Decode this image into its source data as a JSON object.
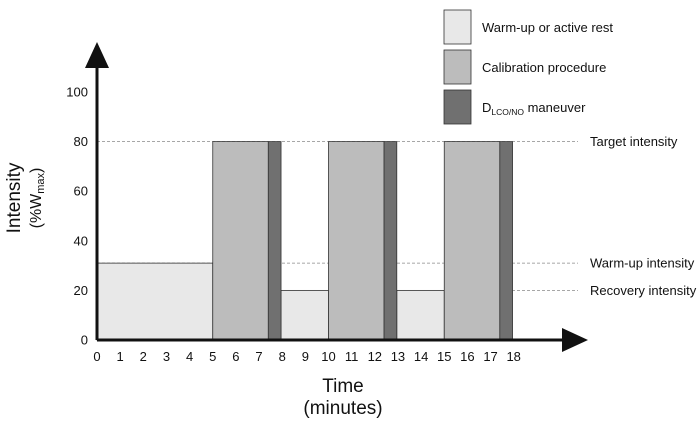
{
  "chart_data": {
    "type": "bar",
    "title": "",
    "xlabel": "Time",
    "xlabel_units": "(minutes)",
    "ylabel": "Intensity",
    "ylabel_units_prefix": "(%W",
    "ylabel_units_sub": "max",
    "ylabel_units_suffix": ")",
    "xlim": [
      0,
      18
    ],
    "ylim": [
      0,
      100
    ],
    "x_ticks": [
      "0",
      "1",
      "2",
      "3",
      "4",
      "5",
      "6",
      "7",
      "8",
      "9",
      "10",
      "11",
      "12",
      "13",
      "14",
      "15",
      "16",
      "17",
      "18"
    ],
    "y_ticks": [
      "0",
      "20",
      "40",
      "60",
      "80",
      "100"
    ],
    "legend_position": "top-right",
    "series": [
      {
        "name_main": "Warm-up or active rest",
        "name_sub": "",
        "name_suffix": "",
        "color": "#e8e8e8",
        "segments": [
          {
            "x_start": 0,
            "x_end": 5,
            "y": 31
          },
          {
            "x_start": 7.95,
            "x_end": 10,
            "y": 20
          },
          {
            "x_start": 12.95,
            "x_end": 15,
            "y": 20
          }
        ]
      },
      {
        "name_main": "Calibration procedure",
        "name_sub": "",
        "name_suffix": "",
        "color": "#bcbcbc",
        "segments": [
          {
            "x_start": 5,
            "x_end": 7.4,
            "y": 80
          },
          {
            "x_start": 10,
            "x_end": 12.4,
            "y": 80
          },
          {
            "x_start": 15,
            "x_end": 17.4,
            "y": 80
          }
        ]
      },
      {
        "name_main": "D",
        "name_sub": "LCO/NO",
        "name_suffix": " maneuver",
        "color": "#707070",
        "segments": [
          {
            "x_start": 7.4,
            "x_end": 7.95,
            "y": 80
          },
          {
            "x_start": 12.4,
            "x_end": 12.95,
            "y": 80
          },
          {
            "x_start": 17.4,
            "x_end": 17.95,
            "y": 80
          }
        ]
      }
    ],
    "reference_lines": [
      {
        "label": "Target intensity",
        "y": 80
      },
      {
        "label": "Warm-up intensity",
        "y": 31
      },
      {
        "label": "Recovery intensity",
        "y": 20
      }
    ]
  }
}
